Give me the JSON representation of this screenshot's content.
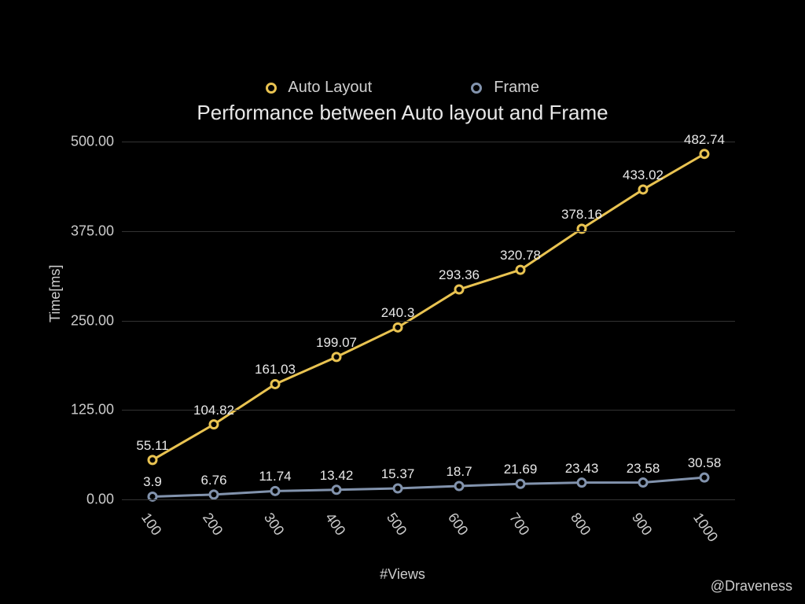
{
  "chart": {
    "type": "line",
    "title": "Performance between Auto layout and Frame",
    "background_color": "#000000",
    "grid_color": "#333333",
    "text_color": "#e0e0e0",
    "title_fontsize": 26,
    "label_fontsize": 18,
    "value_label_fontsize": 17,
    "xlabel": "#Views",
    "ylabel": "Time[ms]",
    "ylim": [
      0,
      500
    ],
    "yticks": [
      0,
      125,
      250,
      375,
      500
    ],
    "ytick_labels": [
      "0.00",
      "125.00",
      "250.00",
      "375.00",
      "500.00"
    ],
    "categories": [
      "100",
      "200",
      "300",
      "400",
      "500",
      "600",
      "700",
      "800",
      "900",
      "1000"
    ],
    "xtick_rotation_deg": 55,
    "line_width": 3,
    "marker_style": "hollow-circle",
    "marker_radius": 5,
    "marker_fill": "#000000",
    "legend_position": "top",
    "series": [
      {
        "name": "Auto Layout",
        "color": "#e9c351",
        "values": [
          55.11,
          104.82,
          161.03,
          199.07,
          240.3,
          293.36,
          320.78,
          378.16,
          433.02,
          482.74
        ],
        "value_labels": [
          "55.11",
          "104.82",
          "161.03",
          "199.07",
          "240.3",
          "293.36",
          "320.78",
          "378.16",
          "433.02",
          "482.74"
        ]
      },
      {
        "name": "Frame",
        "color": "#8293ad",
        "values": [
          3.9,
          6.76,
          11.74,
          13.42,
          15.37,
          18.7,
          21.69,
          23.43,
          23.58,
          30.58
        ],
        "value_labels": [
          "3.9",
          "6.76",
          "11.74",
          "13.42",
          "15.37",
          "18.7",
          "21.69",
          "23.43",
          "23.58",
          "30.58"
        ]
      }
    ],
    "credit": "@Draveness"
  }
}
